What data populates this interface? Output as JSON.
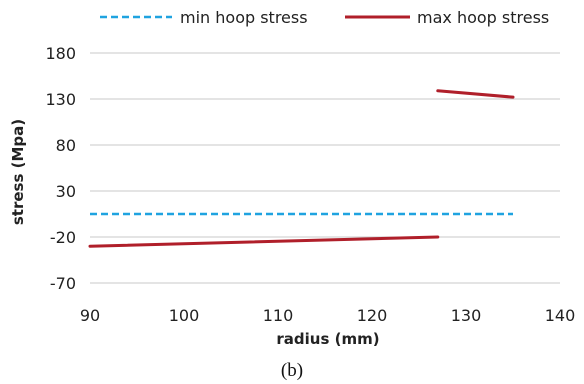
{
  "chart_data": {
    "type": "line",
    "title": "",
    "xlabel": "radius (mm)",
    "ylabel": "stress (Mpa)",
    "xlim": [
      90,
      140
    ],
    "ylim": [
      -70,
      180
    ],
    "xticks": [
      90,
      100,
      110,
      120,
      130,
      140
    ],
    "yticks": [
      180,
      130,
      80,
      30,
      -20,
      -70
    ],
    "grid": "horizontal",
    "legend_position": "top",
    "caption": "(b)",
    "series": [
      {
        "name": "min hoop stress",
        "color": "#1fa3e0",
        "style": "dashed",
        "segments": [
          [
            [
              90,
              5
            ],
            [
              135,
              5
            ]
          ]
        ]
      },
      {
        "name": "max hoop stress",
        "color": "#b01f2a",
        "style": "solid",
        "segments": [
          [
            [
              90,
              -30
            ],
            [
              127,
              -20
            ]
          ],
          [
            [
              127,
              139
            ],
            [
              135,
              132
            ]
          ]
        ]
      }
    ]
  }
}
